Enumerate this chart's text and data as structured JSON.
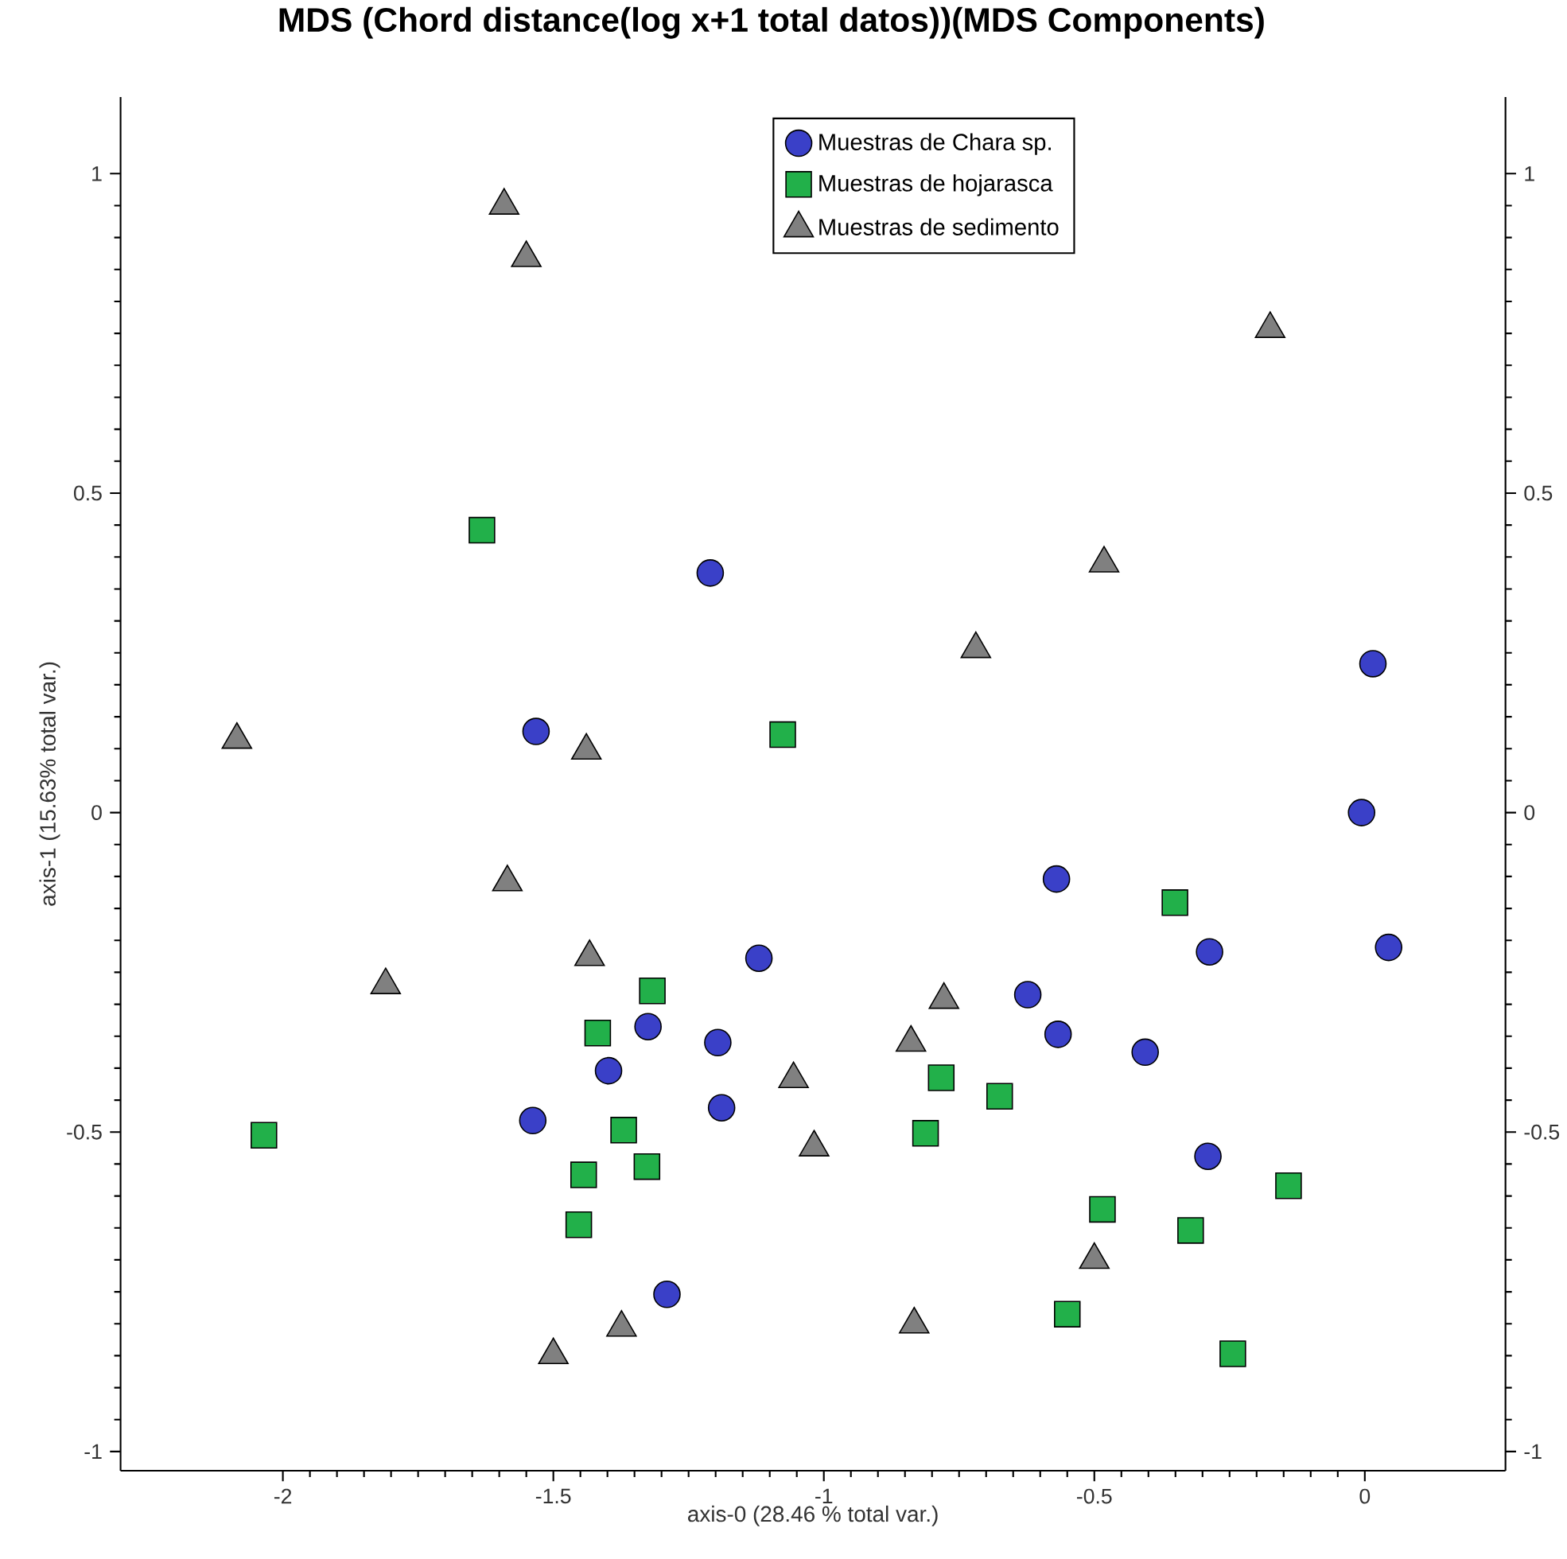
{
  "chart_data": {
    "type": "scatter",
    "title": "MDS (Chord distance(log x+1 total datos))(MDS Components)",
    "xlabel": "axis-0 (28.46 % total var.)",
    "ylabel": "axis-1 (15.63% total var.)",
    "xlim": [
      -2.3,
      0.26
    ],
    "ylim": [
      -1.03,
      1.12
    ],
    "y2lim": [
      -1.03,
      1.12
    ],
    "xticks": [
      -2,
      -1.5,
      -1,
      -0.5,
      0
    ],
    "yticks": [
      -1,
      -0.5,
      0,
      0.5,
      1
    ],
    "y2ticks": [
      -1,
      -0.5,
      0,
      0.5,
      1
    ],
    "legend": "top",
    "series": [
      {
        "name": "Muestras de Chara sp.",
        "color": "#3a40c8",
        "marker": "circle",
        "x": [
          -1.21,
          -1.532,
          0.015,
          -0.006,
          0.044,
          -0.57,
          -0.287,
          -0.623,
          -0.567,
          -0.406,
          -0.29,
          -1.12,
          -1.196,
          -1.325,
          -1.398,
          -1.538,
          -1.189,
          -1.29
        ],
        "values": [
          0.375,
          0.127,
          0.233,
          0.0,
          -0.211,
          -0.104,
          -0.218,
          -0.285,
          -0.347,
          -0.375,
          -0.538,
          -0.228,
          -0.36,
          -0.335,
          -0.404,
          -0.482,
          -0.462,
          -0.754
        ]
      },
      {
        "name": "Muestras de hojarasca",
        "color": "#22b04a",
        "marker": "square",
        "x": [
          -1.632,
          -1.076,
          -0.351,
          -1.317,
          -1.418,
          -2.035,
          -1.37,
          -1.444,
          -1.327,
          -1.453,
          -0.783,
          -0.675,
          -0.812,
          -0.485,
          -0.322,
          -0.141,
          -0.55,
          -0.244
        ],
        "values": [
          0.442,
          0.122,
          -0.141,
          -0.279,
          -0.345,
          -0.505,
          -0.497,
          -0.567,
          -0.554,
          -0.645,
          -0.415,
          -0.444,
          -0.502,
          -0.621,
          -0.654,
          -0.584,
          -0.785,
          -0.847
        ]
      },
      {
        "name": "Muestras de sedimento",
        "color": "#808080",
        "marker": "triangle",
        "x": [
          -1.591,
          -1.55,
          -2.085,
          -1.439,
          -1.585,
          -1.81,
          -1.433,
          -1.056,
          -1.018,
          -0.839,
          -0.778,
          -0.719,
          -0.482,
          -0.175,
          -0.5,
          -0.833,
          -1.374,
          -1.5
        ],
        "values": [
          0.95,
          0.868,
          0.114,
          0.097,
          -0.109,
          -0.27,
          -0.226,
          -0.417,
          -0.524,
          -0.36,
          -0.293,
          0.256,
          0.39,
          0.757,
          -0.7,
          -0.801,
          -0.806,
          -0.849
        ]
      }
    ]
  }
}
